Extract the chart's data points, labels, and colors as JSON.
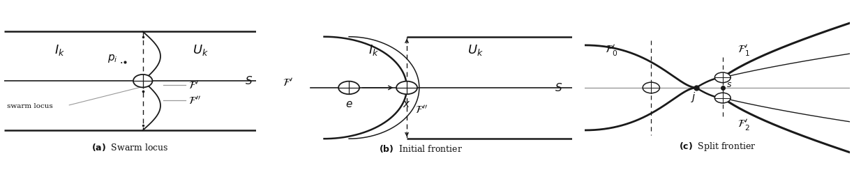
{
  "fig_width": 12.24,
  "fig_height": 2.57,
  "bg_color": "#ffffff",
  "line_color": "#1a1a1a",
  "gray_color": "#999999",
  "text_color": "#111111",
  "caption_fontsize": 9,
  "label_fontsize": 11,
  "region_fontsize": 13
}
